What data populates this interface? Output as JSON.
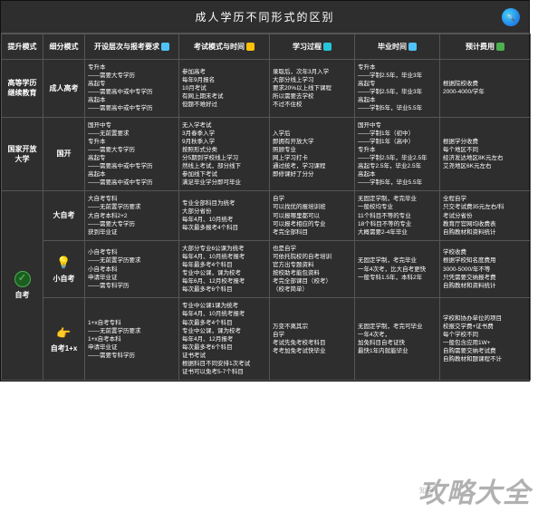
{
  "title": "成人学历不同形式的区别",
  "headers": [
    "提升模式",
    "细分模式",
    "开设层次与报考要求",
    "考试模式与时间",
    "学习过程",
    "毕业时间",
    "预计费用"
  ],
  "watermark": "攻略大全",
  "wm_small": "知乎",
  "groups": [
    {
      "mode": "高等学历\n继续教育",
      "rows": [
        {
          "sub": "成人高考",
          "c2": [
            "专升本",
            "——需要大专学历",
            "高起专",
            "——需要高中或中专学历",
            "高起本",
            "——需要高中或中专学历"
          ],
          "c3": [
            "参加高考",
            "每年9月报名",
            "10月考试",
            "有网上期末考试",
            "但题不难好过"
          ],
          "c4": [
            "录取后，次年3月入学",
            "大部分线上学习",
            "要求20%以上线下课程",
            "所以需要去学校",
            "不过不住校"
          ],
          "c5": [
            "专升本",
            "——学制2.5年，毕业3年",
            "高起专",
            "——学制2.5年，毕业3年",
            "高起本",
            "——学制5年，毕业5.5年"
          ],
          "c6": [
            "根据院校收费",
            "2000-4000/学年"
          ]
        }
      ]
    },
    {
      "mode": "国家开放大学",
      "rows": [
        {
          "sub": "国开",
          "c2": [
            "国开中专",
            "——无前置要求",
            "专升本",
            "——需要大专学历",
            "高起专",
            "——需要高中或中专学历",
            "高起本",
            "——需要高中或中专学历"
          ],
          "c3": [
            "无入学考试",
            "3月春季入学",
            "9月秋季入学",
            "按照形式分类",
            "分5期到学校线上学习",
            "然线上考试，部分线下",
            "参加线下考试",
            "满足毕业学分即可毕业"
          ],
          "c4": [
            "入学后",
            "即拥有开放大学",
            "照顾专业",
            "网上学习打卡",
            "通过统考，学习课程",
            "即修课好了分分"
          ],
          "c5": [
            "国开中专",
            "——学制1年（初中）",
            "——学制1年（高中）",
            "专升本",
            "——学制2.5年，毕业2.5年",
            "高起专2.5年，毕业2.5年",
            "高起本",
            "——学制5年，毕业5.5年"
          ],
          "c6": [
            "根据学分收费",
            "每个地区不同",
            "经济发达地区8K元左右",
            "艾尧地区6K元左右"
          ]
        }
      ]
    },
    {
      "mode": "自考",
      "mode_icon": "check",
      "rows": [
        {
          "sub": "大自考",
          "c2": [
            "大自考专科",
            "——无前置学历要求",
            "大自考本科2+2",
            "——需要大专学历",
            "获到毕业证"
          ],
          "c3": [
            "专业全部科目为统考",
            "大部分省份",
            "每年4月、10月统考",
            "每次最多报考4个科目"
          ],
          "c4": [
            "自学",
            "可以找优的报培训班",
            "可以报哪里都可以",
            "可以报考相应的专业",
            "考完全部科目"
          ],
          "c5": [
            "无固定学制，考完毕业",
            "一般校均专业",
            "11个科目不等的专业",
            "18个科目不等的专业",
            "大概需要2-4年毕业"
          ],
          "c6": [
            "全程自学",
            "只交考试费35元左右/科",
            "考试分省份",
            "教育厅官网均收费表",
            "自购教材和资料统计"
          ]
        },
        {
          "sub": "小自考",
          "sub_icon": "💡",
          "c2": [
            "小自考专科",
            "——无前置学历要求",
            "",
            "小自考本科",
            "申请毕业证",
            "——需专科学历"
          ],
          "c3": [
            "大部分专业6公课为统考",
            "每年4月、10月统考报考",
            "每年最多考4个科目",
            "",
            "专业中公课，课为校考",
            "每年6月、12月校考报考",
            "每次最多考6个科目"
          ],
          "c4": [
            "也是自学",
            "可依托院校的自考培训",
            "官方出专题资料",
            "按校助考能包资料",
            "考完全部课目（校考）",
            "（校考简单）"
          ],
          "c5": [
            "无固定学制，考完毕业",
            "一年4次考，比大自考更快",
            "一般专科1.5年，本科2年"
          ],
          "c6": [
            "学校收费",
            "根据学校知名度费用",
            "3000-5000/年不等",
            "只凭需要交纳报考费",
            "自购教材和资料统计"
          ]
        },
        {
          "sub": "自考1+x",
          "sub_icon": "👉",
          "c2": [
            "1+x自考专科",
            "——无前置学历要求",
            "",
            "1+x自考本科",
            "申请毕业证",
            "——需要专科学历"
          ],
          "c3": [
            "专业中公课1课为统考",
            "每年4月、10月统考报考",
            "每次最多考4个科目",
            "",
            "专业中公课，课为校考",
            "每年4月、12月报考",
            "每次最多考6个科目",
            "",
            "证书考试",
            "根据科目不同安排1次考试",
            "证书可以免考5-7个科目"
          ],
          "c4": [
            "万变不离其宗",
            "自学",
            "",
            "考试先免考校考科目",
            "考考加免考试快毕业"
          ],
          "c5": [
            "无固定学制，考完可毕业",
            "一年4次考，",
            "加免科目自考证快",
            "最快1年内就能毕业"
          ],
          "c6": [
            "学校和协办单位的项目",
            "校报交学费+证书费",
            "每个学校不同",
            "一般包含应用1W+",
            "自购需要交纳考试费",
            "自购教材和题课程不计"
          ]
        }
      ]
    }
  ]
}
